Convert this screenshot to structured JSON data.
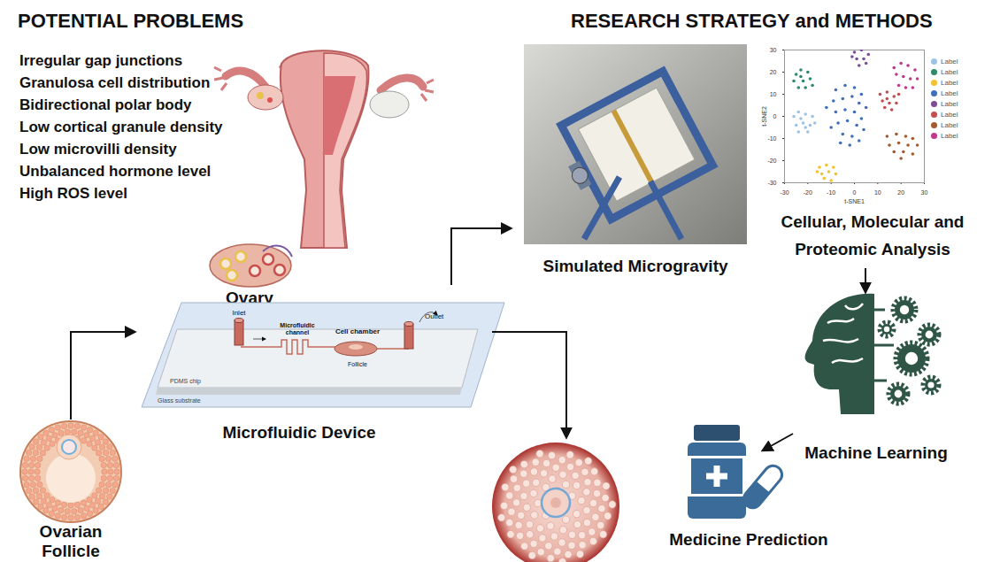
{
  "headings": {
    "problems": "POTENTIAL PROBLEMS",
    "methods": "RESEARCH STRATEGY and METHODS"
  },
  "problems": [
    "Irregular gap junctions",
    "Granulosa cell distribution",
    "Bidirectional polar body",
    "Low cortical granule density",
    "Low microvilli density",
    "Unbalanced hormone level",
    "High ROS level"
  ],
  "labels": {
    "ovary": "Ovary",
    "follicle": [
      "Ovarian",
      "Follicle"
    ],
    "device": "Microfluidic Device",
    "microgravity": "Simulated Microgravity",
    "analysis": [
      "Cellular, Molecular and",
      "Proteomic Analysis"
    ],
    "ml": "Machine Learning",
    "medicine": "Medicine Prediction"
  },
  "device_parts": {
    "inlet": "Inlet",
    "channel": [
      "Microfluidic",
      "channel"
    ],
    "chamber": "Cell chamber",
    "outlet": "Outlet",
    "follicle": "Follicle",
    "chip": "PDMS chip",
    "substrate": "Glass substrate"
  },
  "chart_data": {
    "type": "scatter",
    "xlabel": "t-SNE1",
    "ylabel": "t-SNE2",
    "xlim": [
      -30,
      30
    ],
    "ylim": [
      -30,
      30
    ],
    "xticks": [
      -30,
      -20,
      -10,
      0,
      10,
      20,
      30
    ],
    "yticks": [
      -30,
      -20,
      -10,
      0,
      10,
      20,
      30
    ],
    "legend": "right",
    "series": [
      {
        "name": "Label",
        "color": "#9cc3e6",
        "values": [
          [
            -26,
            0
          ],
          [
            -24,
            2
          ],
          [
            -21,
            1
          ],
          [
            -18,
            0
          ],
          [
            -25,
            -4
          ],
          [
            -22,
            -3
          ],
          [
            -19,
            -4
          ],
          [
            -24,
            -7
          ],
          [
            -20,
            -7
          ],
          [
            -17,
            -3
          ],
          [
            -23,
            -1
          ],
          [
            -21,
            -5
          ]
        ]
      },
      {
        "name": "Label",
        "color": "#2a8a6a",
        "values": [
          [
            -25,
            19
          ],
          [
            -23,
            21
          ],
          [
            -20,
            20
          ],
          [
            -26,
            16
          ],
          [
            -22,
            16
          ],
          [
            -19,
            17
          ],
          [
            -24,
            13
          ],
          [
            -21,
            13
          ],
          [
            -18,
            14
          ],
          [
            -23,
            18
          ]
        ]
      },
      {
        "name": "Label",
        "color": "#f2c12e",
        "values": [
          [
            -15,
            -23
          ],
          [
            -12,
            -22
          ],
          [
            -9,
            -23
          ],
          [
            -14,
            -26
          ],
          [
            -11,
            -25
          ],
          [
            -8,
            -26
          ],
          [
            -13,
            -28
          ],
          [
            -10,
            -29
          ],
          [
            -16,
            -25
          ]
        ]
      },
      {
        "name": "Label",
        "color": "#3f6fba",
        "values": [
          [
            -8,
            12
          ],
          [
            -4,
            14
          ],
          [
            0,
            13
          ],
          [
            3,
            10
          ],
          [
            -9,
            7
          ],
          [
            -5,
            8
          ],
          [
            -1,
            9
          ],
          [
            2,
            6
          ],
          [
            5,
            4
          ],
          [
            -8,
            2
          ],
          [
            -4,
            3
          ],
          [
            0,
            2
          ],
          [
            3,
            -1
          ],
          [
            -7,
            -3
          ],
          [
            -3,
            -2
          ],
          [
            1,
            -4
          ],
          [
            -5,
            -8
          ],
          [
            -1,
            -9
          ],
          [
            -10,
            -5
          ],
          [
            4,
            -6
          ],
          [
            -2,
            -13
          ],
          [
            2,
            -11
          ],
          [
            -6,
            -12
          ],
          [
            -12,
            4
          ]
        ]
      },
      {
        "name": "Label",
        "color": "#7a4d96",
        "values": [
          [
            0,
            29
          ],
          [
            3,
            30
          ],
          [
            6,
            28
          ],
          [
            1,
            26
          ],
          [
            4,
            26
          ],
          [
            2,
            23
          ],
          [
            5,
            24
          ],
          [
            -1,
            27
          ]
        ]
      },
      {
        "name": "Label",
        "color": "#c44e4e",
        "values": [
          [
            11,
            10
          ],
          [
            14,
            11
          ],
          [
            17,
            9
          ],
          [
            12,
            7
          ],
          [
            15,
            6
          ],
          [
            18,
            6
          ],
          [
            13,
            4
          ],
          [
            16,
            3
          ],
          [
            14,
            8
          ],
          [
            19,
            10
          ]
        ]
      },
      {
        "name": "Label",
        "color": "#a35a2e",
        "values": [
          [
            14,
            -9
          ],
          [
            18,
            -8
          ],
          [
            22,
            -9
          ],
          [
            25,
            -10
          ],
          [
            15,
            -13
          ],
          [
            19,
            -12
          ],
          [
            23,
            -13
          ],
          [
            27,
            -13
          ],
          [
            17,
            -16
          ],
          [
            21,
            -16
          ],
          [
            25,
            -17
          ],
          [
            20,
            -19
          ]
        ]
      },
      {
        "name": "Label",
        "color": "#c2368c",
        "values": [
          [
            17,
            22
          ],
          [
            20,
            24
          ],
          [
            23,
            23
          ],
          [
            26,
            21
          ],
          [
            18,
            19
          ],
          [
            21,
            18
          ],
          [
            24,
            17
          ],
          [
            27,
            17
          ],
          [
            19,
            14
          ],
          [
            22,
            13
          ],
          [
            25,
            13
          ]
        ]
      }
    ]
  }
}
